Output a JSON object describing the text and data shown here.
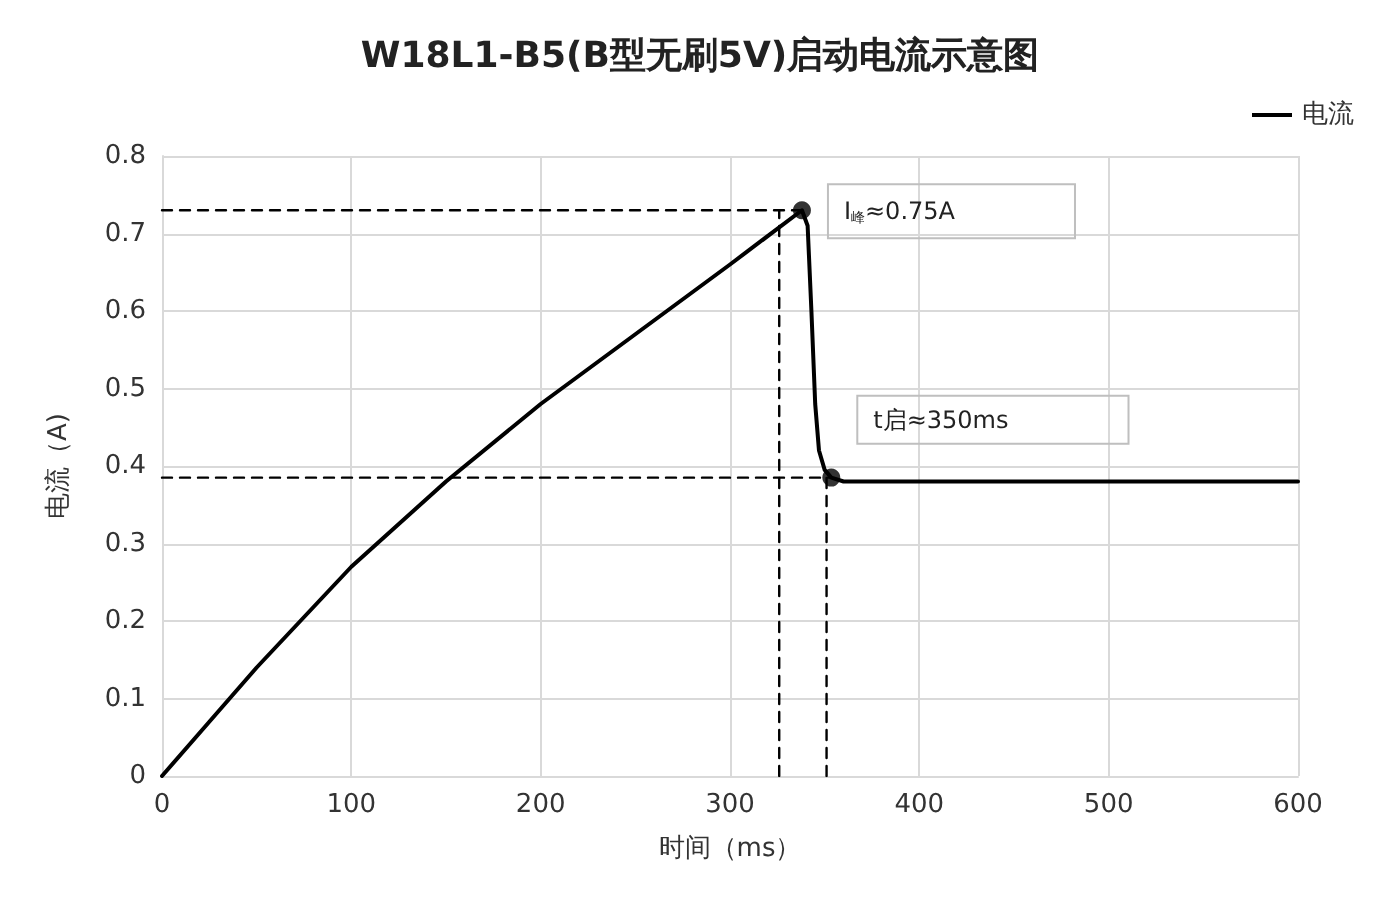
{
  "chart_data": {
    "type": "line",
    "title": "W18L1-B5(B型无刷5V)启动电流示意图",
    "xlabel": "时间（ms）",
    "ylabel": "电流（A)",
    "xlim": [
      0,
      600
    ],
    "xticks": [
      0,
      100,
      200,
      300,
      400,
      500,
      600
    ],
    "ylim": [
      0,
      0.8
    ],
    "yticks": [
      0,
      0.1,
      0.2,
      0.3,
      0.4,
      0.5,
      0.6,
      0.7,
      0.8
    ],
    "grid": true,
    "legend": "top right",
    "series": [
      {
        "name": "电流",
        "color": "#000000",
        "marker": "none",
        "x": [
          0,
          25,
          50,
          100,
          150,
          200,
          250,
          300,
          338,
          341,
          343,
          345,
          347,
          350,
          353.5,
          360,
          600
        ],
        "values": [
          0,
          0.07,
          0.14,
          0.27,
          0.38,
          0.48,
          0.57,
          0.66,
          0.73,
          0.71,
          0.6,
          0.48,
          0.42,
          0.395,
          0.385,
          0.38,
          0.38
        ]
      },
      {
        "type": "scatter",
        "color": "#000000",
        "marker": "circle",
        "x": [
          338,
          353.5
        ],
        "values": [
          0.73,
          0.385
        ]
      },
      {
        "color": "#000000",
        "line_style": "dashed",
        "marker": "none",
        "x": [
          0,
          338
        ],
        "values": [
          0.73,
          0.73
        ]
      },
      {
        "color": "#000000",
        "line_style": "dashed",
        "marker": "none",
        "x": [
          326,
          326
        ],
        "values": [
          0,
          0.73
        ]
      },
      {
        "color": "#000000",
        "line_style": "dashed",
        "marker": "none",
        "x": [
          0,
          353.5
        ],
        "values": [
          0.385,
          0.385
        ]
      },
      {
        "color": "#000000",
        "line_style": "dashed",
        "marker": "none",
        "x": [
          351,
          351
        ],
        "values": [
          0,
          0.385
        ]
      }
    ],
    "annotations": [
      {
        "text": "I$_{峰}$≈0.75A",
        "x": 338,
        "y": 0.73
      },
      {
        "text": "t启≈350ms",
        "x": 353.5,
        "y": 0.385
      }
    ]
  }
}
